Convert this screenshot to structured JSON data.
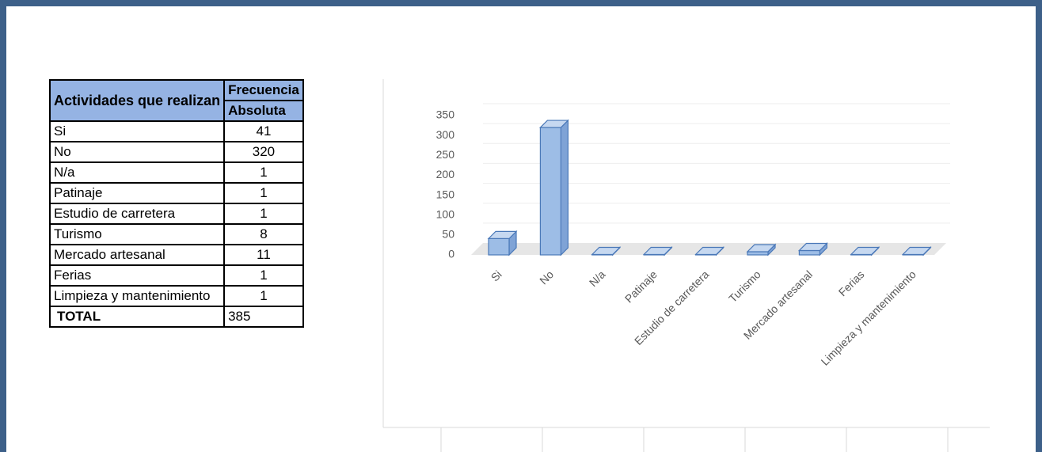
{
  "table": {
    "row_header": "Actividades que realizan",
    "group_header": "Frecuencia",
    "sub_header": "Absoluta",
    "rows": [
      [
        "Si",
        41
      ],
      [
        "No",
        320
      ],
      [
        "N/a",
        1
      ],
      [
        "Patinaje",
        1
      ],
      [
        "Estudio de carretera",
        1
      ],
      [
        "Turismo",
        8
      ],
      [
        "Mercado artesanal",
        11
      ],
      [
        "Ferias",
        1
      ],
      [
        "Limpieza y mantenimiento",
        1
      ]
    ],
    "total": {
      "label": "TOTAL",
      "value": 385
    }
  },
  "chart_data": {
    "type": "bar3d",
    "categories": [
      "Si",
      "No",
      "N/a",
      "Patinaje",
      "Estudio de carretera",
      "Turismo",
      "Mercado artesanal",
      "Ferias",
      "Limpieza y mantenimiento"
    ],
    "values": [
      41,
      320,
      1,
      1,
      1,
      8,
      11,
      1,
      1
    ],
    "color": "#9dbde6",
    "ylim": [
      0,
      350
    ],
    "yticks": [
      0,
      50,
      100,
      150,
      200,
      250,
      300,
      350
    ],
    "grid": true
  }
}
